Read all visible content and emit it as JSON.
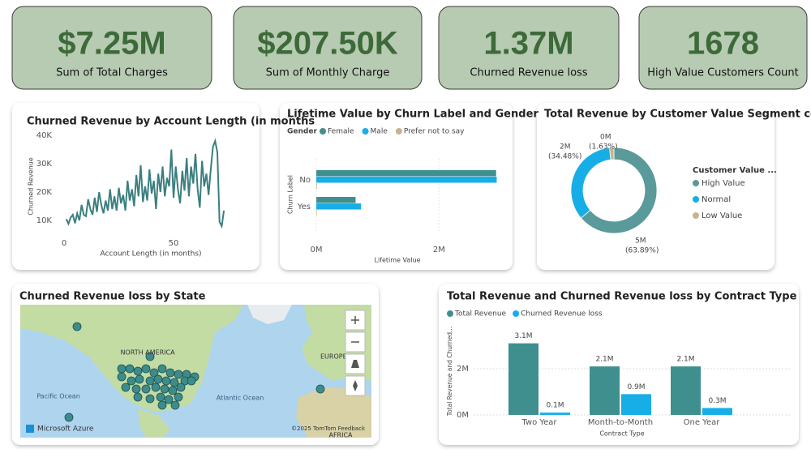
{
  "cards": [
    {
      "value": "$7.25M",
      "label": "Sum of Total Charges"
    },
    {
      "value": "$207.50K",
      "label": "Sum of Monthly Charge"
    },
    {
      "value": "1.37M",
      "label": "Churned Revenue loss"
    },
    {
      "value": "1678",
      "label": "High Value Customers Count"
    }
  ],
  "map": {
    "title": "Churned Revenue loss by State",
    "labels": [
      "NORTH AMERICA",
      "EUROPE",
      "Pacific Ocean",
      "Atlantic Ocean",
      "AFRICA"
    ],
    "brand": "Microsoft Azure",
    "credit": "©2025 TomTom Feedback"
  },
  "chart_data": [
    {
      "type": "line",
      "title": "Churned Revenue by Account Length (in months",
      "x_label": "Account Length (in months)",
      "y_label": "Churned Revenue",
      "color": "#3b7f7f",
      "x": [
        1,
        2,
        3,
        4,
        5,
        6,
        7,
        8,
        9,
        10,
        11,
        12,
        13,
        14,
        15,
        16,
        17,
        18,
        19,
        20,
        21,
        22,
        23,
        24,
        25,
        26,
        27,
        28,
        29,
        30,
        31,
        32,
        33,
        34,
        35,
        36,
        37,
        38,
        39,
        40,
        41,
        42,
        43,
        44,
        45,
        46,
        47,
        48,
        49,
        50,
        51,
        52,
        53,
        54,
        55,
        56,
        57,
        58,
        59,
        60,
        61,
        62,
        63,
        64,
        65,
        66,
        67,
        68,
        69,
        70,
        71,
        72,
        73
      ],
      "values": [
        10500,
        8800,
        11000,
        12000,
        9000,
        12500,
        10000,
        15500,
        12000,
        11500,
        17500,
        14000,
        12000,
        18000,
        13000,
        20000,
        15500,
        12500,
        17000,
        13500,
        21000,
        14000,
        18500,
        13500,
        21500,
        16000,
        19000,
        13500,
        24000,
        17000,
        21000,
        15000,
        26000,
        18500,
        29500,
        16500,
        22000,
        17000,
        28000,
        19500,
        24000,
        14000,
        26500,
        20000,
        29000,
        18500,
        25000,
        22000,
        35000,
        18000,
        29000,
        21000,
        16000,
        27500,
        20500,
        32000,
        18500,
        29000,
        23000,
        33500,
        21000,
        14500,
        31000,
        22000,
        26500,
        19000,
        28000,
        36000,
        38000,
        34000,
        9500,
        8000,
        13500
      ],
      "xlim": [
        0,
        75
      ],
      "xticks": [
        0,
        50
      ],
      "ylim": [
        6000,
        40000
      ],
      "yticks": [
        {
          "value": 10000,
          "label": "10K"
        },
        {
          "value": 20000,
          "label": "20K"
        },
        {
          "value": 30000,
          "label": "30K"
        },
        {
          "value": 40000,
          "label": "40K"
        }
      ],
      "grid": false
    },
    {
      "type": "hbar",
      "title": "Lifetime Value by Churn Label and Gender",
      "legend_title": "Gender",
      "x_label": "Lifetime Value",
      "y_label": "Churn Label",
      "categories": [
        "No",
        "Yes"
      ],
      "series": [
        {
          "name": "Female",
          "color": "#3f8f8f",
          "values": [
            2930000,
            640000
          ]
        },
        {
          "name": "Male",
          "color": "#17aee8",
          "values": [
            2940000,
            730000
          ]
        },
        {
          "name": "Prefer not to say",
          "color": "#c8b48a",
          "values": [
            10000,
            8000
          ]
        }
      ],
      "xlim": [
        0,
        3000000
      ],
      "xticks": [
        {
          "value": 0,
          "label": "0M"
        },
        {
          "value": 2000000,
          "label": "2M"
        }
      ],
      "grid": true
    },
    {
      "type": "donut",
      "title": "Total Revenue by Customer Value Segment col",
      "legend_title": "Customer Value ...",
      "categories": [
        "High Value",
        "Normal",
        "Low Value"
      ],
      "values": [
        63.89,
        34.48,
        1.63
      ],
      "value_labels": [
        "(63.89%)",
        "(34.48%)",
        "(1.63%)"
      ],
      "amount_labels": [
        "5M",
        "2M",
        "0M"
      ],
      "colors": [
        "#5b9a9a",
        "#17aee8",
        "#c8b48a"
      ]
    },
    {
      "type": "column",
      "title": "Total Revenue and Churned Revenue loss by Contract Type",
      "x_label": "Contract Type",
      "y_label": "Total Revenue and Churned...",
      "categories": [
        "Two Year",
        "Month-to-Month",
        "One Year"
      ],
      "series": [
        {
          "name": "Total Revenue",
          "color": "#3f8f8f",
          "values": [
            3100000,
            2100000,
            2100000
          ],
          "value_labels": [
            "3.1M",
            "2.1M",
            "2.1M"
          ]
        },
        {
          "name": "Churned Revenue loss",
          "color": "#17aee8",
          "values": [
            100000,
            900000,
            300000
          ],
          "value_labels": [
            "0.1M",
            "0.9M",
            "0.3M"
          ]
        }
      ],
      "ylim": [
        0,
        4000000
      ],
      "yticks": [
        {
          "value": 0,
          "label": "0M"
        },
        {
          "value": 2000000,
          "label": "2M"
        }
      ],
      "grid": true
    }
  ]
}
